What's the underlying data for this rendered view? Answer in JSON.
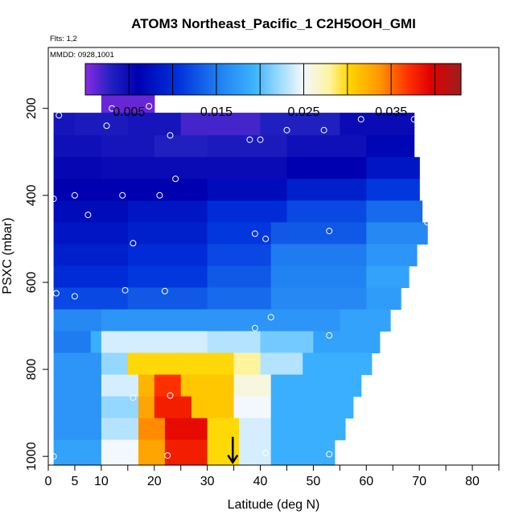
{
  "chart_data": {
    "type": "heatmap",
    "title": "ATOM3 Northeast_Pacific_1 C2H5OOH_GMI",
    "subtitle_lines": [
      "Flts: 1,2",
      "MMDD: 0928,1001"
    ],
    "xlabel": "Latitude (deg N)",
    "ylabel": "PSXC (mbar)",
    "xlim": [
      0,
      85
    ],
    "ylim": [
      1020,
      60
    ],
    "x_reversed": false,
    "y_reversed": true,
    "xticks": [
      0,
      5,
      10,
      20,
      30,
      40,
      50,
      60,
      70,
      80
    ],
    "xticks_minor": [
      15,
      25,
      35,
      45,
      55,
      65,
      75,
      85
    ],
    "yticks": [
      200,
      400,
      600,
      800,
      1000
    ],
    "colorbar": {
      "range": [
        0,
        0.043
      ],
      "ticks": [
        0.005,
        0.015,
        0.025,
        0.035
      ],
      "tick_labels": [
        "0.005",
        "0.015",
        "0.025",
        "0.035"
      ],
      "placement": "top"
    },
    "colormap": [
      [
        0.0,
        "#8a2be2"
      ],
      [
        0.07,
        "#2020c0"
      ],
      [
        0.14,
        "#0000b0"
      ],
      [
        0.25,
        "#0033dd"
      ],
      [
        0.35,
        "#1e7cf0"
      ],
      [
        0.45,
        "#3cb4ff"
      ],
      [
        0.52,
        "#a0dcff"
      ],
      [
        0.58,
        "#f2f8ff"
      ],
      [
        0.65,
        "#fff4a0"
      ],
      [
        0.7,
        "#ffd700"
      ],
      [
        0.78,
        "#ff9a00"
      ],
      [
        0.86,
        "#ff3000"
      ],
      [
        0.92,
        "#e00000"
      ],
      [
        1.0,
        "#9c1e1e"
      ]
    ],
    "marker": {
      "type": "arrow-down",
      "x": 34.8,
      "y_from": 955,
      "y_to": 1012
    },
    "rows": [
      {
        "ptop": 156,
        "pbot": 210,
        "segments": [
          [
            10,
            20,
            0.001
          ]
        ]
      },
      {
        "ptop": 210,
        "pbot": 262,
        "segments": [
          [
            1,
            5,
            0.004
          ],
          [
            5,
            15,
            0.0035
          ],
          [
            15,
            25,
            0.004
          ],
          [
            25,
            40,
            0.002
          ],
          [
            40,
            55,
            0.003
          ],
          [
            55,
            69,
            0.005
          ]
        ]
      },
      {
        "ptop": 262,
        "pbot": 312,
        "segments": [
          [
            1,
            10,
            0.0045
          ],
          [
            10,
            20,
            0.004
          ],
          [
            20,
            30,
            0.003
          ],
          [
            30,
            45,
            0.0035
          ],
          [
            45,
            60,
            0.0045
          ],
          [
            60,
            69,
            0.0065
          ]
        ]
      },
      {
        "ptop": 312,
        "pbot": 362,
        "segments": [
          [
            1,
            10,
            0.0055
          ],
          [
            10,
            25,
            0.005
          ],
          [
            25,
            45,
            0.005
          ],
          [
            45,
            60,
            0.006
          ],
          [
            60,
            70,
            0.008
          ]
        ]
      },
      {
        "ptop": 362,
        "pbot": 412,
        "segments": [
          [
            1,
            15,
            0.006
          ],
          [
            15,
            30,
            0.006
          ],
          [
            30,
            45,
            0.007
          ],
          [
            45,
            60,
            0.009
          ],
          [
            60,
            70,
            0.011
          ]
        ]
      },
      {
        "ptop": 412,
        "pbot": 462,
        "segments": [
          [
            1,
            15,
            0.007
          ],
          [
            15,
            30,
            0.008
          ],
          [
            30,
            45,
            0.01
          ],
          [
            45,
            60,
            0.012
          ],
          [
            60,
            70.5,
            0.014
          ]
        ]
      },
      {
        "ptop": 462,
        "pbot": 512,
        "segments": [
          [
            1,
            15,
            0.008
          ],
          [
            15,
            30,
            0.009
          ],
          [
            30,
            42,
            0.011
          ],
          [
            42,
            60,
            0.013
          ],
          [
            60,
            71.5,
            0.016
          ]
        ]
      },
      {
        "ptop": 512,
        "pbot": 562,
        "segments": [
          [
            1,
            15,
            0.009
          ],
          [
            15,
            30,
            0.01
          ],
          [
            30,
            42,
            0.012
          ],
          [
            42,
            60,
            0.015
          ],
          [
            60,
            69.5,
            0.017
          ]
        ]
      },
      {
        "ptop": 562,
        "pbot": 612,
        "segments": [
          [
            1,
            15,
            0.01
          ],
          [
            15,
            30,
            0.011
          ],
          [
            30,
            42,
            0.013
          ],
          [
            42,
            60,
            0.0155
          ],
          [
            60,
            68,
            0.018
          ]
        ]
      },
      {
        "ptop": 612,
        "pbot": 662,
        "segments": [
          [
            1,
            15,
            0.012
          ],
          [
            15,
            30,
            0.013
          ],
          [
            30,
            42,
            0.014
          ],
          [
            42,
            60,
            0.016
          ],
          [
            60,
            66.5,
            0.0175
          ]
        ]
      },
      {
        "ptop": 662,
        "pbot": 712,
        "segments": [
          [
            1,
            10,
            0.016
          ],
          [
            10,
            25,
            0.017
          ],
          [
            25,
            40,
            0.017
          ],
          [
            40,
            55,
            0.017
          ],
          [
            55,
            64.5,
            0.018
          ]
        ]
      },
      {
        "ptop": 712,
        "pbot": 762,
        "segments": [
          [
            1,
            8,
            0.015
          ],
          [
            8,
            10,
            0.019
          ],
          [
            10,
            30,
            0.024
          ],
          [
            30,
            40,
            0.023
          ],
          [
            40,
            50,
            0.021
          ],
          [
            50,
            62.5,
            0.018
          ]
        ]
      },
      {
        "ptop": 762,
        "pbot": 812,
        "segments": [
          [
            1,
            10,
            0.017
          ],
          [
            10,
            15,
            0.022
          ],
          [
            15,
            35,
            0.03
          ],
          [
            35,
            40,
            0.028
          ],
          [
            40,
            48,
            0.023
          ],
          [
            48,
            61,
            0.019
          ]
        ]
      },
      {
        "ptop": 812,
        "pbot": 862,
        "segments": [
          [
            1,
            10,
            0.017
          ],
          [
            10,
            17,
            0.024
          ],
          [
            17,
            20,
            0.032
          ],
          [
            20,
            25,
            0.037
          ],
          [
            25,
            35,
            0.031
          ],
          [
            35,
            42,
            0.026
          ],
          [
            42,
            59,
            0.019
          ]
        ]
      },
      {
        "ptop": 862,
        "pbot": 912,
        "segments": [
          [
            1,
            10,
            0.017
          ],
          [
            10,
            17,
            0.022
          ],
          [
            17,
            20,
            0.033
          ],
          [
            20,
            27,
            0.038
          ],
          [
            27,
            35,
            0.031
          ],
          [
            35,
            42,
            0.025
          ],
          [
            42,
            57.5,
            0.019
          ]
        ]
      },
      {
        "ptop": 912,
        "pbot": 962,
        "segments": [
          [
            1,
            10,
            0.017
          ],
          [
            10,
            17,
            0.023
          ],
          [
            17,
            22,
            0.034
          ],
          [
            22,
            30,
            0.039
          ],
          [
            30,
            36,
            0.03
          ],
          [
            36,
            42,
            0.024
          ],
          [
            42,
            56,
            0.019
          ]
        ]
      },
      {
        "ptop": 962,
        "pbot": 1020,
        "segments": [
          [
            1,
            10,
            0.018
          ],
          [
            10,
            17,
            0.025
          ],
          [
            17,
            22,
            0.033
          ],
          [
            22,
            30,
            0.038
          ],
          [
            30,
            36,
            0.03
          ],
          [
            36,
            42,
            0.024
          ],
          [
            42,
            54,
            0.019
          ]
        ]
      }
    ],
    "points": [
      [
        12,
        200
      ],
      [
        19,
        195
      ],
      [
        2,
        216
      ],
      [
        11,
        240
      ],
      [
        23,
        262
      ],
      [
        59,
        225
      ],
      [
        69,
        225
      ],
      [
        45,
        250
      ],
      [
        52,
        250
      ],
      [
        38,
        272
      ],
      [
        40,
        272
      ],
      [
        24,
        362
      ],
      [
        1,
        408
      ],
      [
        5,
        400
      ],
      [
        14,
        400
      ],
      [
        21,
        400
      ],
      [
        7.5,
        445
      ],
      [
        16,
        510
      ],
      [
        41,
        500
      ],
      [
        39,
        488
      ],
      [
        53,
        482
      ],
      [
        71.5,
        462
      ],
      [
        1.5,
        625
      ],
      [
        5,
        632
      ],
      [
        14.5,
        618
      ],
      [
        22,
        620
      ],
      [
        39,
        705
      ],
      [
        42,
        680
      ],
      [
        53,
        722
      ],
      [
        16,
        865
      ],
      [
        23,
        860
      ],
      [
        1,
        1000
      ],
      [
        22.5,
        998
      ],
      [
        41,
        992
      ],
      [
        53,
        995
      ]
    ]
  }
}
